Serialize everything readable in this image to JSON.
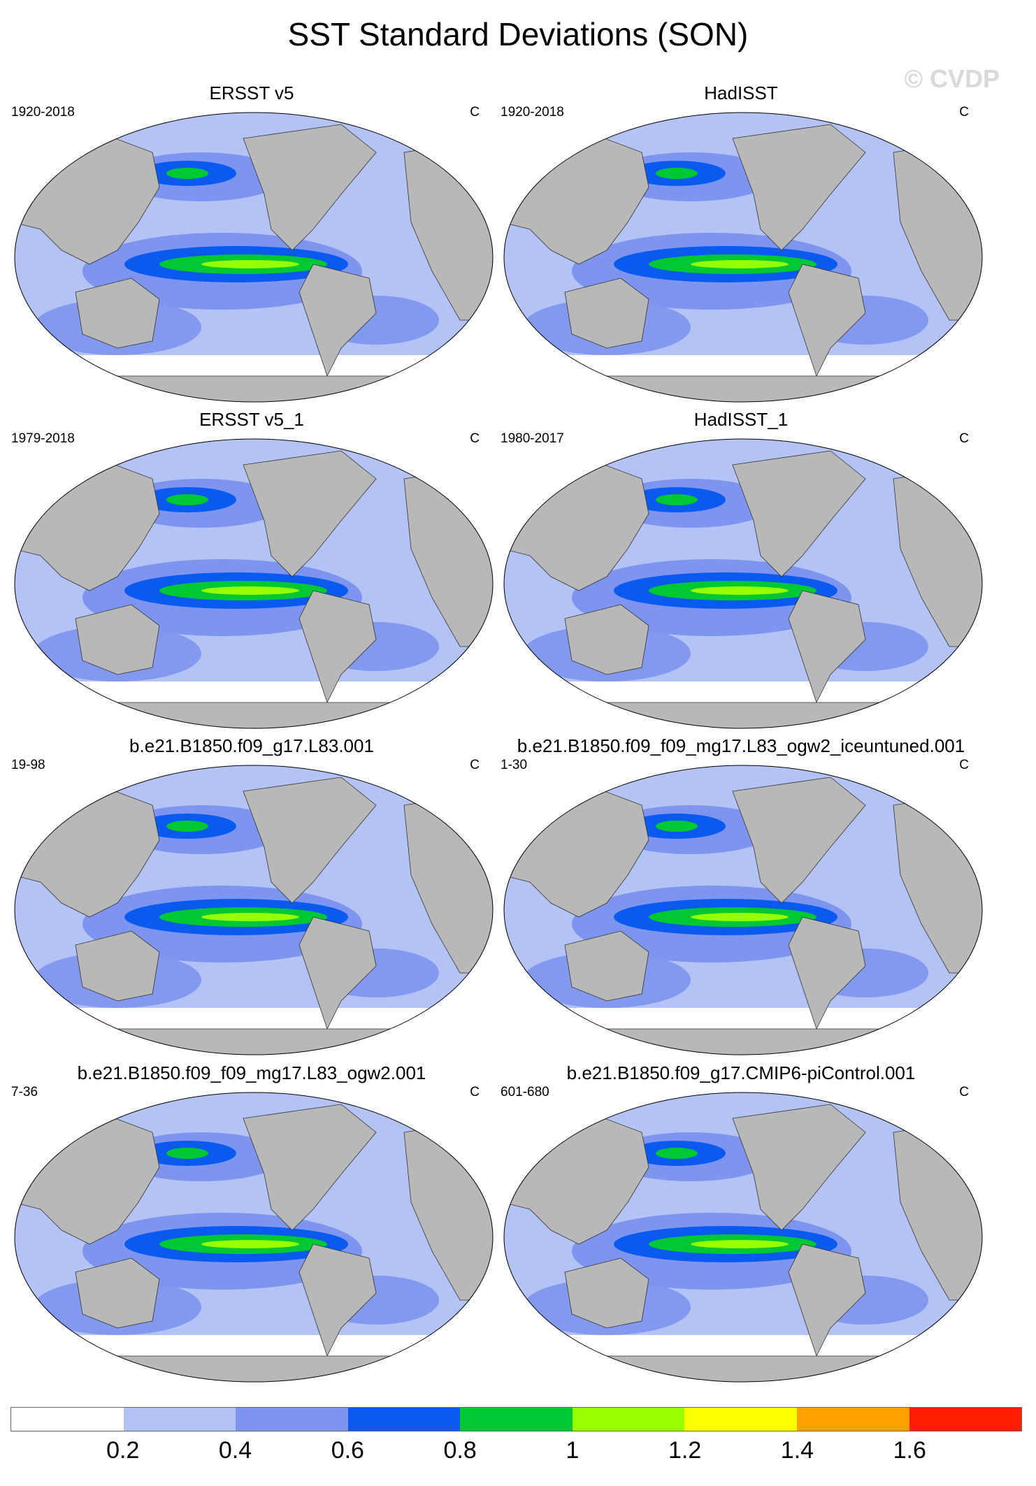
{
  "title": "SST Standard Deviations (SON)",
  "watermark": "© CVDP",
  "colorbar": {
    "colors": [
      "#ffffff",
      "#b3c3f5",
      "#7d95ee",
      "#0a5af0",
      "#00c832",
      "#96ff00",
      "#ffff00",
      "#ffa000",
      "#ff1e00"
    ],
    "labels": [
      "0.2",
      "0.4",
      "0.6",
      "0.8",
      "1",
      "1.2",
      "1.4",
      "1.6"
    ]
  },
  "panels": [
    {
      "title": "ERSST v5",
      "period": "1920-2018",
      "units": "C"
    },
    {
      "title": "HadISST",
      "period": "1920-2018",
      "units": "C"
    },
    {
      "title": "ERSST v5_1",
      "period": "1979-2018",
      "units": "C"
    },
    {
      "title": "HadISST_1",
      "period": "1980-2017",
      "units": "C"
    },
    {
      "title": "b.e21.B1850.f09_g17.L83.001",
      "period": "19-98",
      "units": "C"
    },
    {
      "title": "b.e21.B1850.f09_f09_mg17.L83_ogw2_iceuntuned.001",
      "period": "1-30",
      "units": "C"
    },
    {
      "title": "b.e21.B1850.f09_f09_mg17.L83_ogw2.001",
      "period": "7-36",
      "units": "C"
    },
    {
      "title": "b.e21.B1850.f09_g17.CMIP6-piControl.001",
      "period": "601-680",
      "units": "C"
    }
  ]
}
